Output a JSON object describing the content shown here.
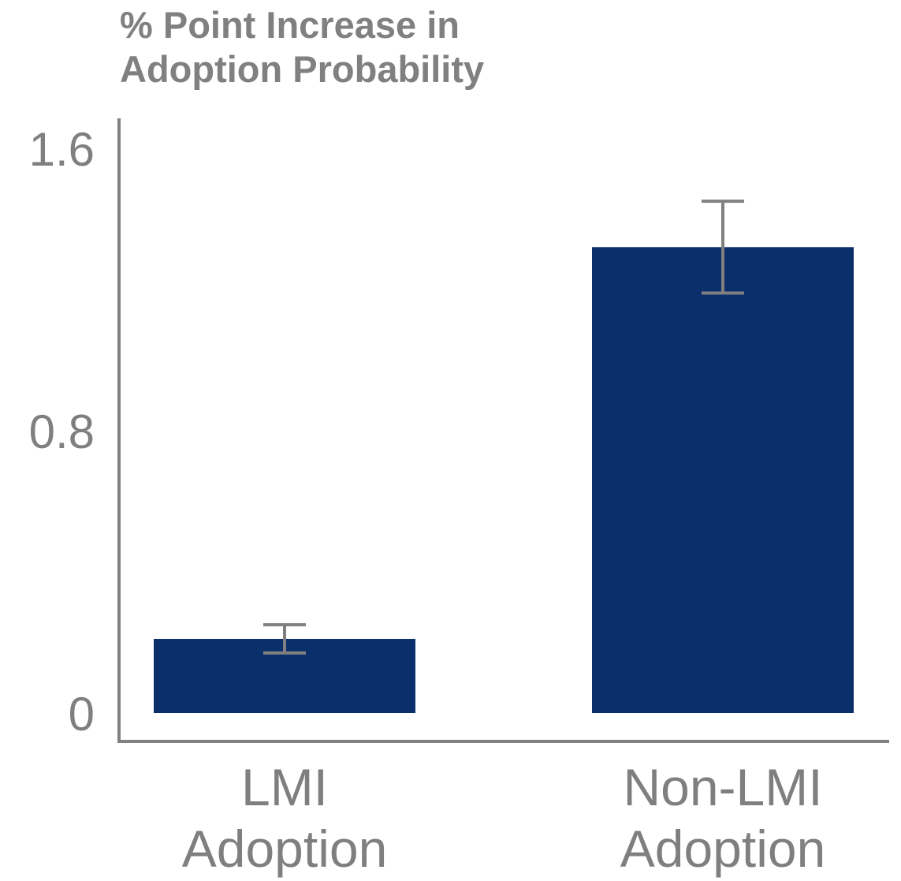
{
  "chart_data": {
    "type": "bar",
    "ylabel_lines": [
      "% Point Increase in",
      "Adoption Probability"
    ],
    "xlabel": "",
    "categories": [
      {
        "lines": [
          "LMI",
          "Adoption"
        ]
      },
      {
        "lines": [
          "Non-LMI",
          "Adoption"
        ]
      }
    ],
    "values": [
      0.21,
      1.32
    ],
    "error_bars": [
      {
        "low": 0.17,
        "high": 0.25
      },
      {
        "low": 1.19,
        "high": 1.45
      }
    ],
    "ylim": [
      0,
      1.6
    ],
    "yticks": [
      {
        "value": 0,
        "label": "0"
      },
      {
        "value": 0.8,
        "label": "0.8"
      },
      {
        "value": 1.6,
        "label": "1.6"
      }
    ],
    "grid": false,
    "colors": {
      "bar": "#0b2f6b",
      "axis": "#808080",
      "error_bar": "#808080"
    }
  }
}
